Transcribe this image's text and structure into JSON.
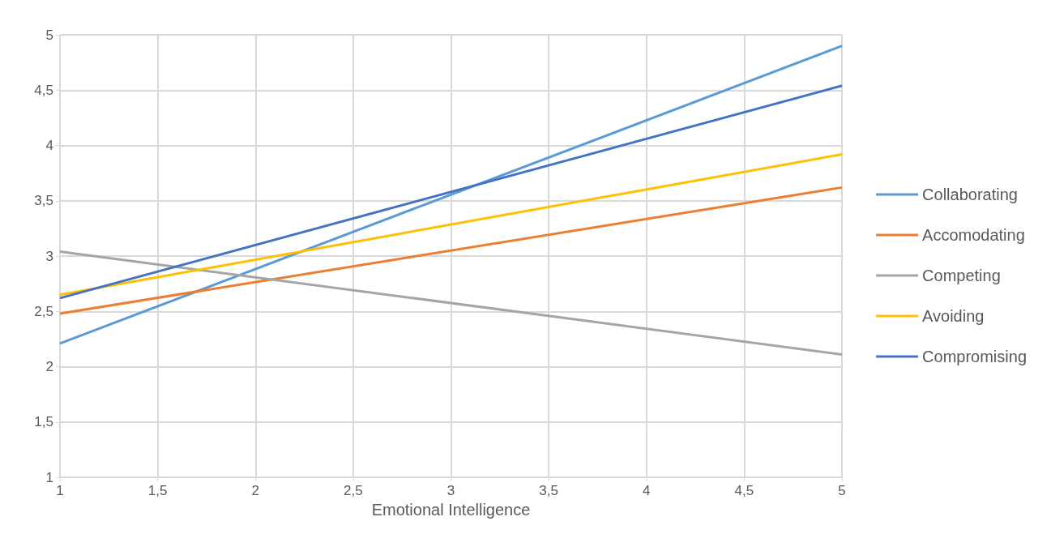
{
  "chart_data": {
    "type": "line",
    "xlabel": "Emotional Intelligence",
    "x": [
      1,
      5
    ],
    "series": [
      {
        "name": "Collaborating",
        "color": "#5b9bd5",
        "values": [
          2.21,
          4.9
        ]
      },
      {
        "name": "Accomodating",
        "color": "#ed7d31",
        "values": [
          2.48,
          3.62
        ]
      },
      {
        "name": "Competing",
        "color": "#a5a5a5",
        "values": [
          3.04,
          2.11
        ]
      },
      {
        "name": "Avoiding",
        "color": "#ffc000",
        "values": [
          2.65,
          3.92
        ]
      },
      {
        "name": "Compromising",
        "color": "#4472c4",
        "values": [
          2.62,
          4.54
        ]
      }
    ],
    "xlim": [
      1,
      5
    ],
    "xticks": [
      1,
      {
        "value": 1.5,
        "label": "1,5"
      },
      2,
      {
        "value": 2.5,
        "label": "2,5"
      },
      3,
      {
        "value": 3.5,
        "label": "3,5"
      },
      4,
      {
        "value": 4.5,
        "label": "4,5"
      },
      5
    ],
    "ylim": [
      1,
      5
    ],
    "yticks": [
      1,
      {
        "value": 1.5,
        "label": "1,5"
      },
      2,
      {
        "value": 2.5,
        "label": "2,5"
      },
      3,
      {
        "value": 3.5,
        "label": "3,5"
      },
      4,
      {
        "value": 4.5,
        "label": "4,5"
      },
      5
    ],
    "grid": true,
    "legend": "right",
    "marker": "none",
    "line_style": "solid"
  }
}
